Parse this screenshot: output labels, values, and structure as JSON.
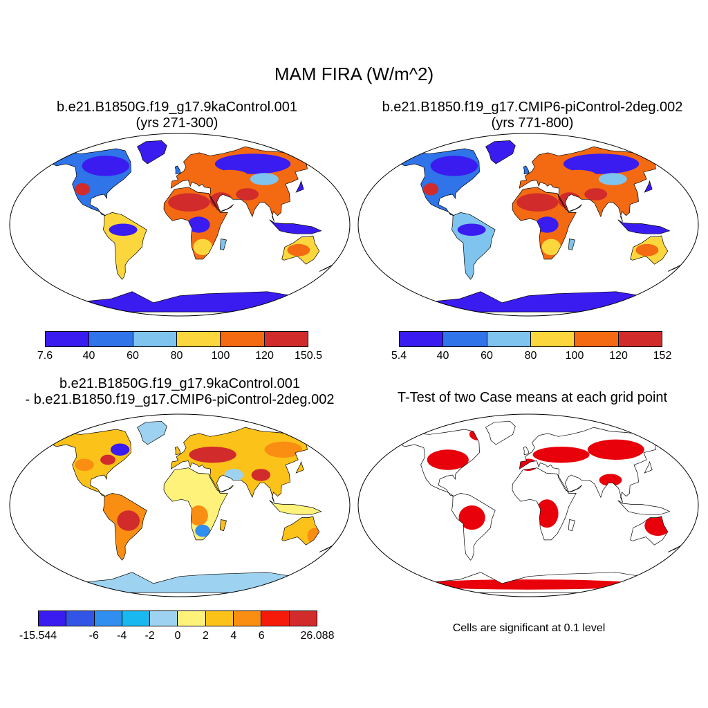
{
  "title": "MAM FIRA (W/m^2)",
  "panels": [
    {
      "id": "case1",
      "title_line1": "b.e21.B1850G.f19_g17.9kaControl.001",
      "title_line2": "(yrs 271-300)",
      "colorbar": {
        "colors": [
          "#3b1cf0",
          "#2f74e8",
          "#7fc4ee",
          "#fbd63c",
          "#f36a12",
          "#d12b2b"
        ],
        "labels": [
          "7.6",
          "40",
          "60",
          "80",
          "100",
          "120",
          "150.5"
        ]
      }
    },
    {
      "id": "case2",
      "title_line1": "b.e21.B1850.f19_g17.CMIP6-piControl-2deg.002",
      "title_line2": "(yrs 771-800)",
      "colorbar": {
        "colors": [
          "#3b1cf0",
          "#2f74e8",
          "#7fc4ee",
          "#fbd63c",
          "#f36a12",
          "#d12b2b"
        ],
        "labels": [
          "5.4",
          "40",
          "60",
          "80",
          "100",
          "120",
          "152"
        ]
      }
    },
    {
      "id": "diff",
      "title_line1": "b.e21.B1850G.f19_g17.9kaControl.001",
      "title_line2": "- b.e21.B1850.f19_g17.CMIP6-piControl-2deg.002",
      "colorbar": {
        "colors": [
          "#3b1cf0",
          "#3355e6",
          "#2f8ef0",
          "#1ab8f0",
          "#9dd3f0",
          "#fff27a",
          "#fbc21a",
          "#f98e12",
          "#f51a0a",
          "#d12b2b"
        ],
        "labels": [
          "-15.544",
          "-6",
          "-4",
          "-2",
          "0",
          "2",
          "4",
          "6",
          "26.088"
        ]
      }
    },
    {
      "id": "ttest",
      "title_line1": "T-Test of two Case means at each grid point",
      "note": "Cells are significant at 0.1 level",
      "color": "#e8000b"
    }
  ]
}
